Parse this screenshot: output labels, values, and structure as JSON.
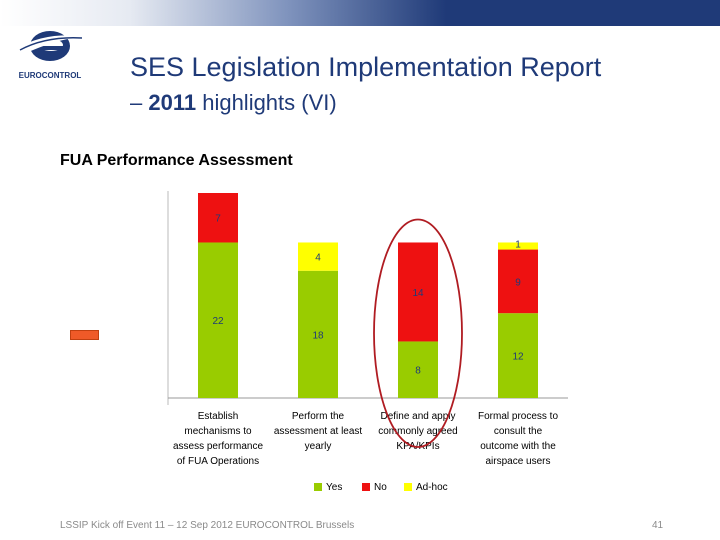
{
  "slide": {
    "title_line1": "SES Legislation Implementation Report",
    "title_line2_dash": "– ",
    "title_line2_bold": "2011",
    "title_line2_rest": " highlights (VI)",
    "subtitle": "FUA Performance Assessment",
    "logo_text": "EUROCONTROL",
    "footer": "LSSIP Kick off Event 11 – 12 Sep 2012 EUROCONTROL Brussels",
    "page_number": "41"
  },
  "colors": {
    "brand_blue": "#1f3a78",
    "yes": "#99cc00",
    "no": "#ee1111",
    "adhoc": "#ffff00",
    "highlight_circle": "#b01c22",
    "bar_label": "#1f3a78"
  },
  "chart_data": {
    "type": "bar",
    "stacked": true,
    "categories": [
      "Establish mechanisms to assess performance of FUA Operations",
      "Perform the assessment at least yearly",
      "Define and apply commonly agreed KPA/KPIs",
      "Formal process to consult the outcome with the airspace users"
    ],
    "category_lines": [
      [
        "Establish",
        "mechanisms to",
        "assess performance",
        "of FUA Operations"
      ],
      [
        "Perform the",
        "assessment at least",
        "yearly"
      ],
      [
        "Define and apply",
        "commonly agreed",
        "KPA/KPIs"
      ],
      [
        "Formal process to",
        "consult the",
        "outcome with the",
        "airspace users"
      ]
    ],
    "series": [
      {
        "name": "Yes",
        "values": [
          22,
          18,
          8,
          12
        ],
        "color": "#99cc00"
      },
      {
        "name": "No",
        "values": [
          7,
          0,
          14,
          9
        ],
        "color": "#ee1111"
      },
      {
        "name": "Ad-hoc",
        "values": [
          0,
          4,
          0,
          1
        ],
        "color": "#ffff00"
      }
    ],
    "ylim": [
      0,
      29
    ],
    "legend_position": "bottom",
    "highlighted_category": "Define and apply commonly agreed KPA/KPIs"
  }
}
